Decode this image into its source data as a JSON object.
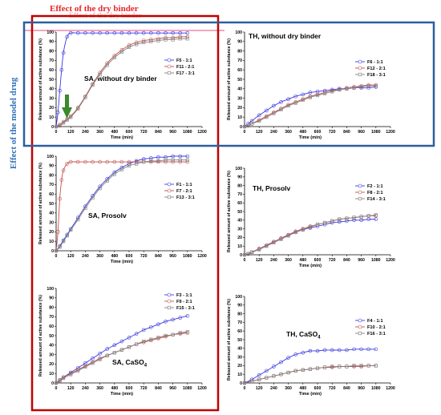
{
  "header": {
    "dry_binder_label": "Effect of the dry binder",
    "dry_binder_ghost": "Effect of the dry binder",
    "model_drug_label": "Effect of the model drug"
  },
  "colors": {
    "series": [
      "#3a3ae0",
      "#c0504d",
      "#7f7f7f"
    ],
    "binder_box": "#c00000",
    "drug_box": "#2e5f9e",
    "arrow": "#3a8a2a",
    "pink_line": "#f4a6c0"
  },
  "chart_data": [
    {
      "type": "scatter",
      "title": "SA, without dry binder",
      "xlabel": "Time (min)",
      "ylabel": "Released amount of active substance (%)",
      "xlim": [
        0,
        1200
      ],
      "ylim": [
        0,
        100
      ],
      "xticks": [
        0,
        120,
        240,
        360,
        480,
        600,
        720,
        840,
        960,
        1080,
        1200
      ],
      "yticks": [
        0,
        10,
        20,
        30,
        40,
        50,
        60,
        70,
        80,
        90,
        100
      ],
      "legend_position": "right",
      "series": [
        {
          "name": "F5 - 1:1",
          "x": [
            0,
            15,
            30,
            45,
            60,
            90,
            120,
            180,
            240,
            300,
            360,
            420,
            480,
            540,
            600,
            660,
            720,
            780,
            840,
            900,
            960,
            1020,
            1080
          ],
          "y": [
            0,
            15,
            38,
            60,
            78,
            95,
            99,
            99,
            99,
            99,
            99,
            99,
            99,
            99,
            99,
            99,
            99,
            99,
            99,
            99,
            99,
            99,
            99
          ]
        },
        {
          "name": "F11 - 2:1",
          "x": [
            0,
            30,
            60,
            90,
            120,
            180,
            240,
            300,
            360,
            420,
            480,
            540,
            600,
            660,
            720,
            780,
            840,
            900,
            960,
            1020,
            1080
          ],
          "y": [
            0,
            2,
            5,
            8,
            11,
            20,
            32,
            45,
            57,
            67,
            75,
            81,
            86,
            89,
            91,
            92,
            93,
            94,
            94,
            95,
            95
          ]
        },
        {
          "name": "F17 - 3:1",
          "x": [
            0,
            30,
            60,
            90,
            120,
            180,
            240,
            300,
            360,
            420,
            480,
            540,
            600,
            660,
            720,
            780,
            840,
            900,
            960,
            1020,
            1080
          ],
          "y": [
            0,
            1,
            4,
            7,
            10,
            19,
            31,
            44,
            55,
            65,
            73,
            79,
            84,
            87,
            89,
            90,
            91,
            92,
            92,
            93,
            93
          ]
        }
      ]
    },
    {
      "type": "scatter",
      "title": "TH, without dry binder",
      "xlabel": "Time (min)",
      "ylabel": "Released amount of active substance (%)",
      "xlim": [
        0,
        1200
      ],
      "ylim": [
        0,
        100
      ],
      "xticks": [
        0,
        120,
        240,
        360,
        480,
        600,
        720,
        840,
        960,
        1080,
        1200
      ],
      "yticks": [
        0,
        10,
        20,
        30,
        40,
        50,
        60,
        70,
        80,
        90,
        100
      ],
      "legend_position": "right",
      "series": [
        {
          "name": "F6 - 1:1",
          "x": [
            0,
            30,
            60,
            120,
            180,
            240,
            300,
            360,
            420,
            480,
            540,
            600,
            660,
            720,
            780,
            840,
            900,
            960,
            1020,
            1080
          ],
          "y": [
            0,
            3,
            6,
            12,
            17,
            22,
            26,
            29,
            32,
            34,
            36,
            37,
            38,
            39,
            40,
            40,
            41,
            41,
            41,
            42
          ]
        },
        {
          "name": "F12 - 2:1",
          "x": [
            0,
            30,
            60,
            120,
            180,
            240,
            300,
            360,
            420,
            480,
            540,
            600,
            660,
            720,
            780,
            840,
            900,
            960,
            1020,
            1080
          ],
          "y": [
            0,
            1,
            3,
            7,
            11,
            15,
            19,
            23,
            26,
            29,
            32,
            34,
            36,
            38,
            39,
            41,
            42,
            43,
            44,
            44
          ]
        },
        {
          "name": "F18 - 3:1",
          "x": [
            0,
            30,
            60,
            120,
            180,
            240,
            300,
            360,
            420,
            480,
            540,
            600,
            660,
            720,
            780,
            840,
            900,
            960,
            1020,
            1080
          ],
          "y": [
            0,
            1,
            3,
            6,
            10,
            14,
            18,
            22,
            25,
            28,
            31,
            33,
            35,
            37,
            39,
            40,
            41,
            42,
            43,
            43
          ]
        }
      ]
    },
    {
      "type": "scatter",
      "title": "SA, Prosolv",
      "xlabel": "Time (min)",
      "ylabel": "Released amount of active substance (%)",
      "xlim": [
        0,
        1200
      ],
      "ylim": [
        0,
        100
      ],
      "xticks": [
        0,
        120,
        240,
        360,
        480,
        600,
        720,
        840,
        960,
        1080,
        1200
      ],
      "yticks": [
        0,
        10,
        20,
        30,
        40,
        50,
        60,
        70,
        80,
        90,
        100
      ],
      "legend_position": "right",
      "series": [
        {
          "name": "F1 - 1:1",
          "x": [
            0,
            30,
            60,
            90,
            120,
            180,
            240,
            300,
            360,
            420,
            480,
            540,
            600,
            660,
            720,
            780,
            840,
            900,
            960,
            1020,
            1080
          ],
          "y": [
            0,
            5,
            11,
            17,
            23,
            35,
            47,
            58,
            68,
            76,
            83,
            88,
            92,
            95,
            97,
            98,
            99,
            99,
            100,
            100,
            100
          ]
        },
        {
          "name": "F7 - 2:1",
          "x": [
            0,
            15,
            30,
            45,
            60,
            90,
            120,
            180,
            240,
            300,
            360,
            420,
            480,
            540,
            600,
            660,
            720,
            780,
            840,
            900,
            960,
            1020,
            1080
          ],
          "y": [
            0,
            20,
            55,
            75,
            85,
            92,
            94,
            94,
            94,
            94,
            94,
            94,
            94,
            94,
            94,
            94,
            94,
            94,
            94,
            94,
            94,
            94,
            94
          ]
        },
        {
          "name": "F13 - 3:1",
          "x": [
            0,
            30,
            60,
            90,
            120,
            180,
            240,
            300,
            360,
            420,
            480,
            540,
            600,
            660,
            720,
            780,
            840,
            900,
            960,
            1020,
            1080
          ],
          "y": [
            0,
            4,
            10,
            16,
            22,
            33,
            45,
            56,
            66,
            74,
            81,
            86,
            90,
            92,
            94,
            95,
            95,
            96,
            96,
            96,
            96
          ]
        }
      ]
    },
    {
      "type": "scatter",
      "title": "TH, Prosolv",
      "xlabel": "Time (min)",
      "ylabel": "Released amount of active substance (%)",
      "xlim": [
        0,
        1200
      ],
      "ylim": [
        0,
        100
      ],
      "xticks": [
        0,
        120,
        240,
        360,
        480,
        600,
        720,
        840,
        960,
        1080,
        1200
      ],
      "yticks": [
        0,
        10,
        20,
        30,
        40,
        50,
        60,
        70,
        80,
        90,
        100
      ],
      "legend_position": "right",
      "series": [
        {
          "name": "F2 - 1:1",
          "x": [
            0,
            30,
            60,
            120,
            180,
            240,
            300,
            360,
            420,
            480,
            540,
            600,
            660,
            720,
            780,
            840,
            900,
            960,
            1020,
            1080
          ],
          "y": [
            0,
            1,
            3,
            7,
            11,
            15,
            19,
            23,
            26,
            29,
            31,
            33,
            35,
            37,
            38,
            39,
            40,
            40,
            41,
            41
          ]
        },
        {
          "name": "F8 - 2:1",
          "x": [
            0,
            30,
            60,
            120,
            180,
            240,
            300,
            360,
            420,
            480,
            540,
            600,
            660,
            720,
            780,
            840,
            900,
            960,
            1020,
            1080
          ],
          "y": [
            0,
            1,
            3,
            7,
            11,
            15,
            19,
            23,
            27,
            30,
            33,
            35,
            37,
            39,
            41,
            42,
            43,
            44,
            45,
            45
          ]
        },
        {
          "name": "F14 - 3:1",
          "x": [
            0,
            30,
            60,
            120,
            180,
            240,
            300,
            360,
            420,
            480,
            540,
            600,
            660,
            720,
            780,
            840,
            900,
            960,
            1020,
            1080
          ],
          "y": [
            0,
            1,
            3,
            6,
            10,
            14,
            18,
            22,
            26,
            29,
            32,
            35,
            37,
            39,
            41,
            42,
            43,
            44,
            45,
            46
          ]
        }
      ]
    },
    {
      "type": "scatter",
      "title": "SA, CaSO",
      "title_subscript": "4",
      "xlabel": "Time (min)",
      "ylabel": "Released amount of active substance (%)",
      "xlim": [
        0,
        1200
      ],
      "ylim": [
        0,
        100
      ],
      "xticks": [
        0,
        120,
        240,
        360,
        480,
        600,
        720,
        840,
        960,
        1080,
        1200
      ],
      "yticks": [
        0,
        10,
        20,
        30,
        40,
        50,
        60,
        70,
        80,
        90,
        100
      ],
      "legend_position": "right",
      "series": [
        {
          "name": "F3 - 1:1",
          "x": [
            0,
            30,
            60,
            120,
            180,
            240,
            300,
            360,
            420,
            480,
            540,
            600,
            660,
            720,
            780,
            840,
            900,
            960,
            1020,
            1080
          ],
          "y": [
            0,
            3,
            6,
            11,
            16,
            21,
            26,
            31,
            36,
            40,
            44,
            48,
            52,
            56,
            59,
            62,
            65,
            67,
            69,
            71
          ]
        },
        {
          "name": "F9 - 2:1",
          "x": [
            0,
            30,
            60,
            120,
            180,
            240,
            300,
            360,
            420,
            480,
            540,
            600,
            660,
            720,
            780,
            840,
            900,
            960,
            1020,
            1080
          ],
          "y": [
            0,
            3,
            6,
            10,
            14,
            18,
            22,
            26,
            29,
            32,
            35,
            38,
            41,
            43,
            45,
            47,
            49,
            51,
            52,
            53
          ]
        },
        {
          "name": "F15 - 3:1",
          "x": [
            0,
            30,
            60,
            120,
            180,
            240,
            300,
            360,
            420,
            480,
            540,
            600,
            660,
            720,
            780,
            840,
            900,
            960,
            1020,
            1080
          ],
          "y": [
            0,
            2,
            5,
            9,
            13,
            17,
            21,
            25,
            29,
            32,
            35,
            38,
            41,
            44,
            46,
            48,
            50,
            51,
            53,
            54
          ]
        }
      ]
    },
    {
      "type": "scatter",
      "title": "TH, CaSO",
      "title_subscript": "4",
      "xlabel": "Time (min)",
      "ylabel": "Released amount of active substance (%)",
      "xlim": [
        0,
        1200
      ],
      "ylim": [
        0,
        100
      ],
      "xticks": [
        0,
        120,
        240,
        360,
        480,
        600,
        720,
        840,
        960,
        1080,
        1200
      ],
      "yticks": [
        0,
        10,
        20,
        30,
        40,
        50,
        60,
        70,
        80,
        90,
        100
      ],
      "legend_position": "right",
      "series": [
        {
          "name": "F4 - 1:1",
          "x": [
            0,
            60,
            120,
            180,
            240,
            300,
            360,
            420,
            480,
            540,
            600,
            660,
            720,
            780,
            840,
            900,
            960,
            1020,
            1080
          ],
          "y": [
            0,
            4,
            9,
            14,
            19,
            24,
            29,
            33,
            35,
            37,
            37,
            38,
            38,
            38,
            38,
            39,
            39,
            39,
            39
          ]
        },
        {
          "name": "F10 - 2:1",
          "x": [
            0,
            60,
            120,
            180,
            240,
            300,
            360,
            420,
            480,
            540,
            600,
            660,
            720,
            780,
            840,
            900,
            960,
            1020,
            1080
          ],
          "y": [
            0,
            2,
            4,
            6,
            8,
            10,
            12,
            14,
            15,
            16,
            17,
            18,
            18,
            19,
            19,
            19,
            19,
            20,
            20
          ]
        },
        {
          "name": "F16 - 3:1",
          "x": [
            0,
            60,
            120,
            180,
            240,
            300,
            360,
            420,
            480,
            540,
            600,
            660,
            720,
            780,
            840,
            900,
            960,
            1020,
            1080
          ],
          "y": [
            0,
            2,
            4,
            6,
            8,
            10,
            12,
            14,
            15,
            16,
            17,
            18,
            19,
            19,
            19,
            20,
            20,
            20,
            20
          ]
        }
      ]
    }
  ]
}
